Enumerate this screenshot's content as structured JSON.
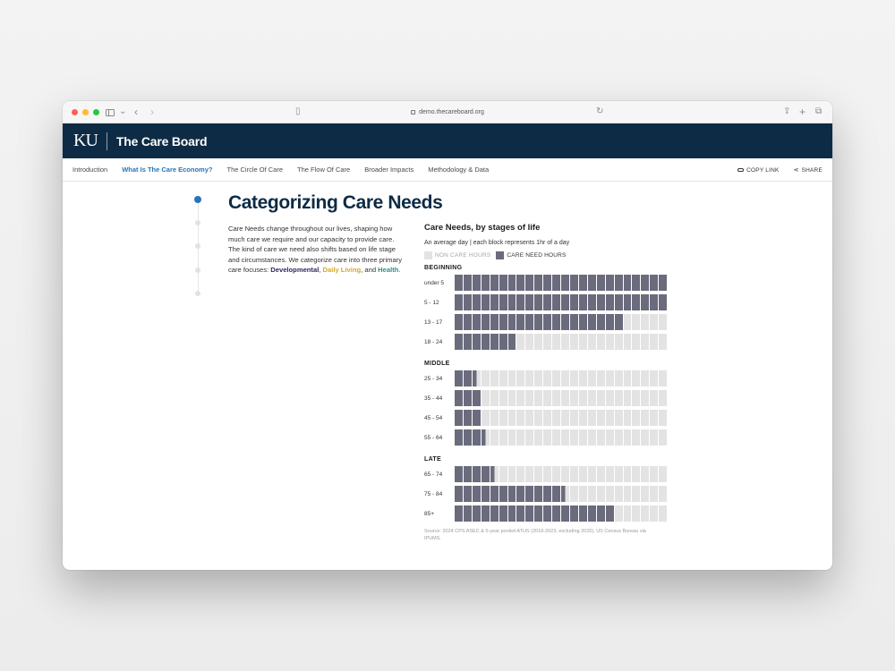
{
  "browser": {
    "url": "demo.thecareboard.org"
  },
  "site": {
    "logo": "KU",
    "title": "The Care Board"
  },
  "nav": {
    "items": [
      {
        "label": "Introduction",
        "active": false
      },
      {
        "label": "What Is The Care Economy?",
        "active": true
      },
      {
        "label": "The Circle Of Care",
        "active": false
      },
      {
        "label": "The Flow Of Care",
        "active": false
      },
      {
        "label": "Broader Impacts",
        "active": false
      },
      {
        "label": "Methodology & Data",
        "active": false
      }
    ],
    "copy_link": "COPY LINK",
    "share": "SHARE"
  },
  "progress": {
    "steps": 5,
    "active_index": 0
  },
  "content": {
    "title": "Categorizing Care Needs",
    "intro_text": "Care Needs change throughout our lives, shaping how much care we require and our capacity to provide care. The kind of care we need also shifts based on life stage and circumstances. We categorize care into three primary care focuses: ",
    "focus_developmental": "Developmental",
    "sep1": ", ",
    "focus_daily": "Daily Living",
    "sep2": ", and ",
    "focus_health": "Health",
    "end": "."
  },
  "colors": {
    "need": "#6b6b7e",
    "non": "#e3e3e3",
    "accent": "#2a73b8",
    "header": "#0d2b45"
  },
  "chart_data": {
    "type": "bar",
    "title": "Care Needs, by stages of life",
    "subtitle": "An average day | each block represents 1hr of a day",
    "legend": [
      "NON CARE HOURS",
      "CARE NEED HOURS"
    ],
    "total_blocks": 24,
    "groups": [
      {
        "name": "BEGINNING",
        "rows": [
          {
            "label": "under 5",
            "care_hours": 24
          },
          {
            "label": "5 - 12",
            "care_hours": 24
          },
          {
            "label": "13 - 17",
            "care_hours": 19
          },
          {
            "label": "18 - 24",
            "care_hours": 7
          }
        ]
      },
      {
        "name": "MIDDLE",
        "rows": [
          {
            "label": "25 - 34",
            "care_hours": 2.5
          },
          {
            "label": "35 - 44",
            "care_hours": 3
          },
          {
            "label": "45 - 54",
            "care_hours": 3
          },
          {
            "label": "55 - 64",
            "care_hours": 3.5
          }
        ]
      },
      {
        "name": "LATE",
        "rows": [
          {
            "label": "65 - 74",
            "care_hours": 4.5
          },
          {
            "label": "75 - 84",
            "care_hours": 12.5
          },
          {
            "label": "85+",
            "care_hours": 18
          }
        ]
      }
    ],
    "source": "Source: 2024 CPS ASEC & 5-year pooled ATUS (2018-2023, excluding 2020), US Census Bureau via IPUMS."
  }
}
